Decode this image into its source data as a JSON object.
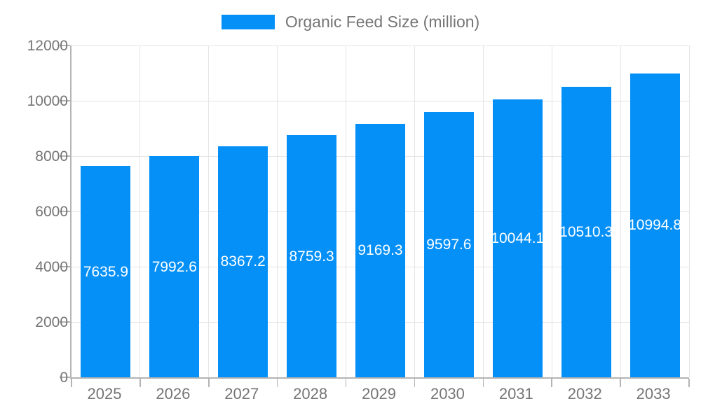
{
  "legend": {
    "label": "Organic Feed Size (million)"
  },
  "colors": {
    "bar": "#0590f8",
    "axis_text": "#757575",
    "axis_line": "#b4b4b4",
    "gridline": "#e5e5e5",
    "bar_label_text": "#ffffff",
    "background": "#ffffff"
  },
  "chart_data": {
    "type": "bar",
    "title": "Organic Feed Size (million)",
    "categories": [
      "2025",
      "2026",
      "2027",
      "2028",
      "2029",
      "2030",
      "2031",
      "2032",
      "2033"
    ],
    "values": [
      7635.9,
      7992.6,
      8367.2,
      8759.3,
      9169.3,
      9597.6,
      10044.1,
      10510.3,
      10994.8
    ],
    "series_name": "Organic Feed Size (million)",
    "xlabel": "",
    "ylabel": "",
    "ylim": [
      0,
      12000
    ],
    "yticks": [
      0,
      2000,
      4000,
      6000,
      8000,
      10000,
      12000
    ],
    "grid": true,
    "legend_position": "top-center",
    "bar_labels_inside": true
  }
}
